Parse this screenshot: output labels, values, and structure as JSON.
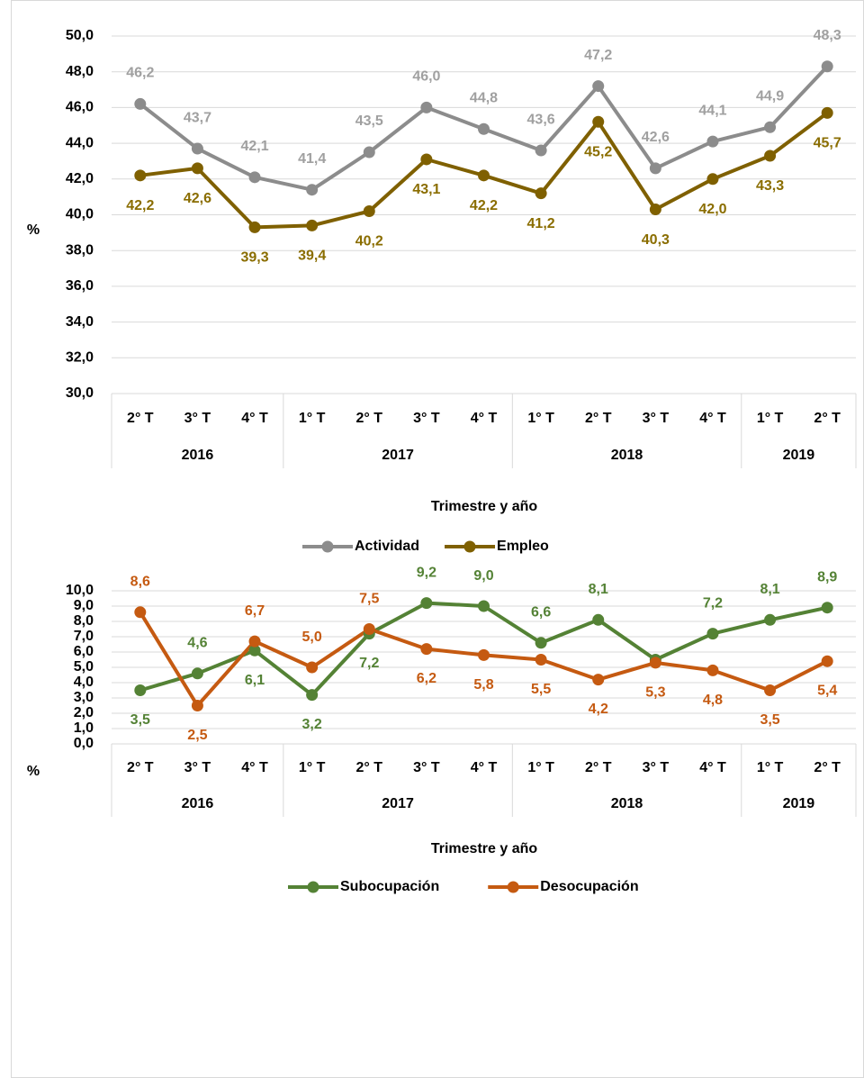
{
  "chart_data": [
    {
      "type": "line",
      "x_axis_label": "Trimestre y año",
      "y_axis_label": "%",
      "groups": [
        {
          "label": "2016",
          "categories": [
            "2° T",
            "3° T",
            "4° T"
          ]
        },
        {
          "label": "2017",
          "categories": [
            "1° T",
            "2° T",
            "3° T",
            "4° T"
          ]
        },
        {
          "label": "2018",
          "categories": [
            "1° T",
            "2° T",
            "3° T",
            "4° T"
          ]
        },
        {
          "label": "2019",
          "categories": [
            "1° T",
            "2° T"
          ]
        }
      ],
      "ylim": [
        30,
        50
      ],
      "yticks": [
        {
          "value": 30,
          "label": "30,0"
        },
        {
          "value": 32,
          "label": "32,0"
        },
        {
          "value": 34,
          "label": "34,0"
        },
        {
          "value": 36,
          "label": "36,0"
        },
        {
          "value": 38,
          "label": "38,0"
        },
        {
          "value": 40,
          "label": "40,0"
        },
        {
          "value": 42,
          "label": "42,0"
        },
        {
          "value": 44,
          "label": "44,0"
        },
        {
          "value": 46,
          "label": "46,0"
        },
        {
          "value": 48,
          "label": "48,0"
        },
        {
          "value": 50,
          "label": "50,0"
        }
      ],
      "series": [
        {
          "name": "Actividad",
          "color": "#8c8c8c",
          "label_color": "#a0a0a0",
          "values": [
            46.2,
            43.7,
            42.1,
            41.4,
            43.5,
            46.0,
            44.8,
            43.6,
            47.2,
            42.6,
            44.1,
            44.9,
            48.3
          ],
          "value_labels": [
            "46,2",
            "43,7",
            "42,1",
            "41,4",
            "43,5",
            "46,0",
            "44,8",
            "43,6",
            "47,2",
            "42,6",
            "44,1",
            "44,9",
            "48,3"
          ]
        },
        {
          "name": "Empleo",
          "color": "#7f6000",
          "label_color": "#8a6d00",
          "values": [
            42.2,
            42.6,
            39.3,
            39.4,
            40.2,
            43.1,
            42.2,
            41.2,
            45.2,
            40.3,
            42.0,
            43.3,
            45.7
          ],
          "value_labels": [
            "42,2",
            "42,6",
            "39,3",
            "39,4",
            "40,2",
            "43,1",
            "42,2",
            "41,2",
            "45,2",
            "40,3",
            "42,0",
            "43,3",
            "45,7"
          ]
        }
      ]
    },
    {
      "type": "line",
      "x_axis_label": "Trimestre y año",
      "y_axis_label": "%",
      "groups": [
        {
          "label": "2016",
          "categories": [
            "2° T",
            "3° T",
            "4° T"
          ]
        },
        {
          "label": "2017",
          "categories": [
            "1° T",
            "2° T",
            "3° T",
            "4° T"
          ]
        },
        {
          "label": "2018",
          "categories": [
            "1° T",
            "2° T",
            "3° T",
            "4° T"
          ]
        },
        {
          "label": "2019",
          "categories": [
            "1° T",
            "2° T"
          ]
        }
      ],
      "ylim": [
        0,
        10
      ],
      "yticks": [
        {
          "value": 0,
          "label": "0,0"
        },
        {
          "value": 1,
          "label": "1,0"
        },
        {
          "value": 2,
          "label": "2,0"
        },
        {
          "value": 3,
          "label": "3,0"
        },
        {
          "value": 4,
          "label": "4,0"
        },
        {
          "value": 5,
          "label": "5,0"
        },
        {
          "value": 6,
          "label": "6,0"
        },
        {
          "value": 7,
          "label": "7,0"
        },
        {
          "value": 8,
          "label": "8,0"
        },
        {
          "value": 9,
          "label": "9,0"
        },
        {
          "value": 10,
          "label": "10,0"
        }
      ],
      "series": [
        {
          "name": "Subocupación",
          "color": "#548235",
          "label_color": "#548235",
          "values": [
            3.5,
            4.6,
            6.1,
            3.2,
            7.2,
            9.2,
            9.0,
            6.6,
            8.1,
            5.5,
            7.2,
            8.1,
            8.9
          ],
          "value_labels": [
            "3,5",
            "4,6",
            "6,1",
            "3,2",
            "7,2",
            "9,2",
            "9,0",
            "6,6",
            "8,1",
            null,
            "7,2",
            "8,1",
            "8,9"
          ]
        },
        {
          "name": "Desocupación",
          "color": "#c55a11",
          "label_color": "#c55a11",
          "values": [
            8.6,
            2.5,
            6.7,
            5.0,
            7.5,
            6.2,
            5.8,
            5.5,
            4.2,
            5.3,
            4.8,
            3.5,
            5.4
          ],
          "value_labels": [
            "8,6",
            "2,5",
            "6,7",
            "5,0",
            "7,5",
            "6,2",
            "5,8",
            "5,5",
            "4,2",
            "5,3",
            "4,8",
            "3,5",
            "5,4"
          ]
        }
      ]
    }
  ]
}
